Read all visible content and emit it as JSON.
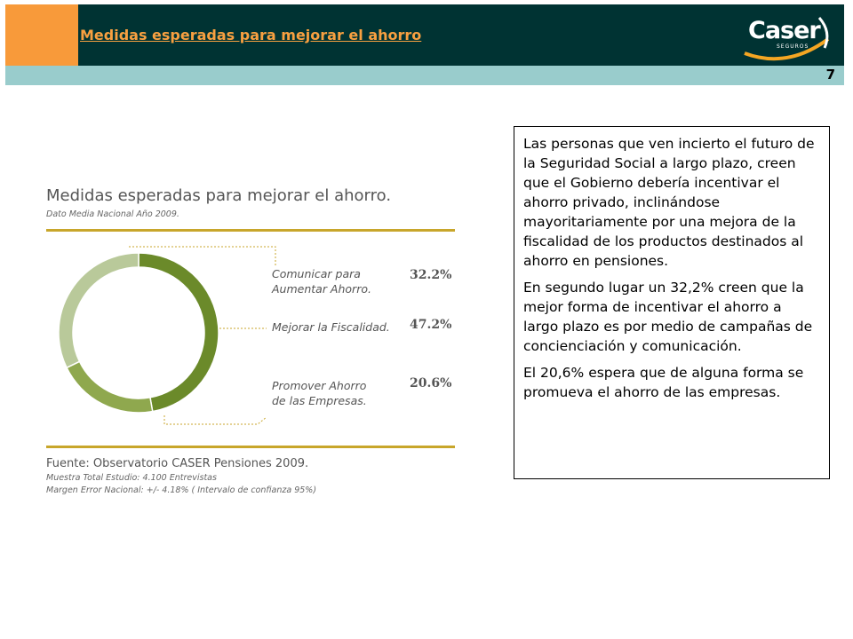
{
  "header": {
    "title": "Medidas esperadas para mejorar el ahorro",
    "page_number": "7",
    "logo_text": "Caser",
    "logo_sub": "SEGUROS"
  },
  "chart_data": {
    "type": "pie",
    "title": "Medidas esperadas para mejorar el ahorro.",
    "subtitle": "Dato Media Nacional Año 2009.",
    "categories": [
      "Mejorar la Fiscalidad.",
      "Promover Ahorro de las Empresas.",
      "Comunicar para Aumentar Ahorro."
    ],
    "values": [
      47.2,
      20.6,
      32.2
    ],
    "value_labels": [
      "47.2%",
      "20.6%",
      "32.2%"
    ],
    "colors": [
      "#6b8a2a",
      "#8fa84e",
      "#b9c99a"
    ],
    "donut": true
  },
  "legend": {
    "items": [
      {
        "line1": "Comunicar para",
        "line2": "Aumentar Ahorro.",
        "pct": "32.2%"
      },
      {
        "line1": "Mejorar la Fiscalidad.",
        "line2": "",
        "pct": "47.2%"
      },
      {
        "line1": "Promover Ahorro",
        "line2": "de las Empresas.",
        "pct": "20.6%"
      }
    ]
  },
  "source": {
    "title": "Fuente: Observatorio CASER Pensiones 2009.",
    "note1": "Muestra Total Estudio: 4.100 Entrevistas",
    "note2": "Margen Error Nacional: +/- 4.18% ( Intervalo de confianza 95%)"
  },
  "textbox": {
    "p1": "Las personas que ven incierto el futuro de la Seguridad Social a largo plazo, creen que el Gobierno debería incentivar el ahorro privado, inclinándose mayoritariamente por una mejora de la fiscalidad de los productos destinados al ahorro en pensiones.",
    "p2": "En segundo lugar un 32,2% creen que la mejor forma de incentivar el ahorro a largo plazo es por medio de campañas de concienciación y comunicación.",
    "p3": "El 20,6% espera que de alguna forma se promueva el ahorro de las empresas."
  }
}
